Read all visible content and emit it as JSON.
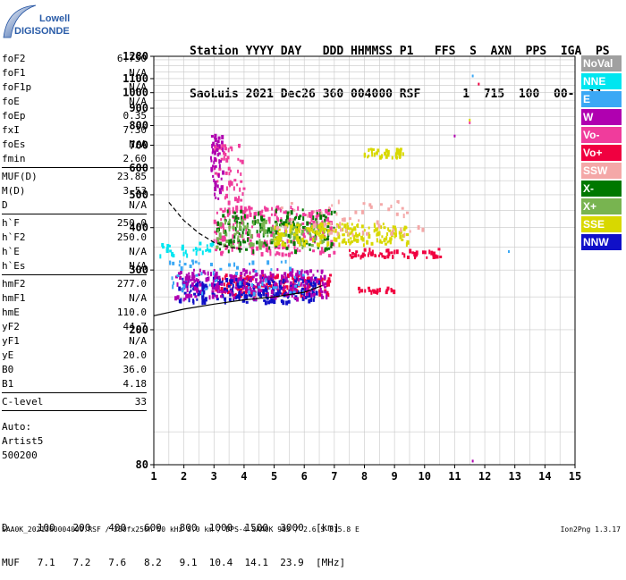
{
  "logo": {
    "line1": "Lowell",
    "line2": "DIGISONDE"
  },
  "header": {
    "labels": "Station YYYY DAY   DDD HHMMSS P1   FFS  S  AXN  PPS  IGA  PS",
    "values": "SaoLuis 2021 Dec26 360 004000 RSF      1  715  100  00-  11"
  },
  "params": [
    {
      "k": "foF2",
      "v": "6.750"
    },
    {
      "k": "foF1",
      "v": "N/A"
    },
    {
      "k": "foF1p",
      "v": "N/A"
    },
    {
      "k": "foE",
      "v": "N/A"
    },
    {
      "k": "foEp",
      "v": "0.35"
    },
    {
      "k": "fxI",
      "v": "7.30"
    },
    {
      "k": "foEs",
      "v": "N/A"
    },
    {
      "k": "fmin",
      "v": "2.60"
    },
    {
      "k": "MUF(D)",
      "v": "23.85",
      "sep": true
    },
    {
      "k": "M(D)",
      "v": "3.53"
    },
    {
      "k": "D",
      "v": "N/A"
    },
    {
      "k": "h`F",
      "v": "250.0",
      "sep": true
    },
    {
      "k": "h`F2",
      "v": "250.0"
    },
    {
      "k": "h`E",
      "v": "N/A"
    },
    {
      "k": "h`Es",
      "v": "N/A"
    },
    {
      "k": "hmF2",
      "v": "277.0",
      "sep": true
    },
    {
      "k": "hmF1",
      "v": "N/A"
    },
    {
      "k": "hmE",
      "v": "110.0"
    },
    {
      "k": "yF2",
      "v": "44.7"
    },
    {
      "k": "yF1",
      "v": "N/A"
    },
    {
      "k": "yE",
      "v": "20.0"
    },
    {
      "k": "B0",
      "v": "36.0"
    },
    {
      "k": "B1",
      "v": "4.18"
    },
    {
      "k": "C-level",
      "v": "33",
      "sep": true
    }
  ],
  "auto": {
    "line1": "Auto:",
    "line2": "Artist5",
    "line3": "500200"
  },
  "legend": [
    {
      "label": "NoVal",
      "color": "#a0a0a0"
    },
    {
      "label": "NNE",
      "color": "#00e6f0"
    },
    {
      "label": "E",
      "color": "#3ba8f5"
    },
    {
      "label": "W",
      "color": "#b000b0"
    },
    {
      "label": "Vo-",
      "color": "#f03c9c"
    },
    {
      "label": "Vo+",
      "color": "#f00040"
    },
    {
      "label": "SSW",
      "color": "#f4a8a8"
    },
    {
      "label": "X-",
      "color": "#007800"
    },
    {
      "label": "X+",
      "color": "#78b450"
    },
    {
      "label": "SSE",
      "color": "#d8d800"
    },
    {
      "label": "NNW",
      "color": "#1010c8"
    }
  ],
  "muf_table": {
    "d_row": "D     100   200   400   600   800  1000  1500  3000  [km]",
    "muf_row": "MUF   7.1   7.2   7.6   8.2   9.1  10.4  14.1  23.9  [MHz]"
  },
  "bottom": {
    "left": "SAA0K_2021360004000.RSF / 280fx256h 50 kHz 5.0 km / DPS-4 SAA0K 903 / 2.6 S 315.8 E",
    "right": "Ion2Png 1.3.17"
  },
  "chart_data": {
    "type": "scatter",
    "xlim": [
      1,
      15
    ],
    "ylim": [
      80,
      1280
    ],
    "y_scale": "log",
    "x_ticks": [
      1,
      2,
      3,
      4,
      5,
      6,
      7,
      8,
      9,
      10,
      11,
      12,
      13,
      14,
      15
    ],
    "y_ticks": [
      80,
      200,
      300,
      400,
      500,
      600,
      700,
      800,
      900,
      1000,
      1100,
      1280
    ],
    "grid": true,
    "clusters": [
      {
        "type": "Vo+",
        "color": "#f00040",
        "x": [
          3.0,
          6.9
        ],
        "y": [
          252,
          290
        ],
        "n": 180
      },
      {
        "type": "NNW",
        "color": "#1010c8",
        "x": [
          1.8,
          6.5
        ],
        "y": [
          240,
          285
        ],
        "n": 260
      },
      {
        "type": "W",
        "color": "#b000b0",
        "x": [
          1.7,
          6.8
        ],
        "y": [
          245,
          300
        ],
        "n": 220
      },
      {
        "type": "Vo-",
        "color": "#f03c9c",
        "x": [
          3.0,
          7.0
        ],
        "y": [
          330,
          460
        ],
        "n": 260
      },
      {
        "type": "X-",
        "color": "#007800",
        "x": [
          3.1,
          7.0
        ],
        "y": [
          340,
          450
        ],
        "n": 160
      },
      {
        "type": "X+",
        "color": "#78b450",
        "x": [
          3.0,
          6.8
        ],
        "y": [
          350,
          420
        ],
        "n": 120
      },
      {
        "type": "SSE",
        "color": "#d8d800",
        "x": [
          5.0,
          9.5
        ],
        "y": [
          355,
          410
        ],
        "n": 200
      },
      {
        "type": "SSE",
        "color": "#d8d800",
        "x": [
          8.0,
          9.3
        ],
        "y": [
          640,
          680
        ],
        "n": 40
      },
      {
        "type": "NNE",
        "color": "#00e6f0",
        "x": [
          1.0,
          3.0
        ],
        "y": [
          330,
          360
        ],
        "n": 30
      },
      {
        "type": "E",
        "color": "#3ba8f5",
        "x": [
          1.5,
          6.0
        ],
        "y": [
          255,
          320
        ],
        "n": 60
      },
      {
        "type": "Vo-",
        "color": "#f03c9c",
        "x": [
          3.0,
          4.0
        ],
        "y": [
          470,
          700
        ],
        "n": 60
      },
      {
        "type": "W",
        "color": "#b000b0",
        "x": [
          2.9,
          3.3
        ],
        "y": [
          480,
          750
        ],
        "n": 50
      },
      {
        "type": "Vo+",
        "color": "#f00040",
        "x": [
          7.5,
          10.6
        ],
        "y": [
          325,
          345
        ],
        "n": 60
      },
      {
        "type": "SSW",
        "color": "#f4a8a8",
        "x": [
          5.0,
          10.0
        ],
        "y": [
          380,
          480
        ],
        "n": 60
      },
      {
        "type": "Vo+",
        "color": "#f00040",
        "x": [
          7.7,
          9.0
        ],
        "y": [
          255,
          265
        ],
        "n": 25
      }
    ],
    "points": [
      {
        "x": 11.6,
        "y": 1120,
        "color": "#3ba8f5"
      },
      {
        "x": 11.8,
        "y": 1060,
        "color": "#f00040"
      },
      {
        "x": 11.5,
        "y": 830,
        "color": "#d8d800"
      },
      {
        "x": 11.5,
        "y": 815,
        "color": "#f03c9c"
      },
      {
        "x": 11.0,
        "y": 745,
        "color": "#b000b0"
      },
      {
        "x": 11.6,
        "y": 82,
        "color": "#b000b0"
      },
      {
        "x": 12.8,
        "y": 340,
        "color": "#3ba8f5"
      }
    ],
    "curves": [
      {
        "style": "solid",
        "x": [
          1.0,
          2.0,
          3.0,
          4.0,
          5.0,
          6.0,
          6.6
        ],
        "y": [
          220,
          230,
          238,
          245,
          250,
          258,
          270
        ]
      },
      {
        "style": "dashed",
        "x": [
          1.5,
          2.0,
          2.5,
          3.0,
          3.5,
          4.0
        ],
        "y": [
          475,
          420,
          385,
          362,
          350,
          345
        ]
      }
    ]
  }
}
